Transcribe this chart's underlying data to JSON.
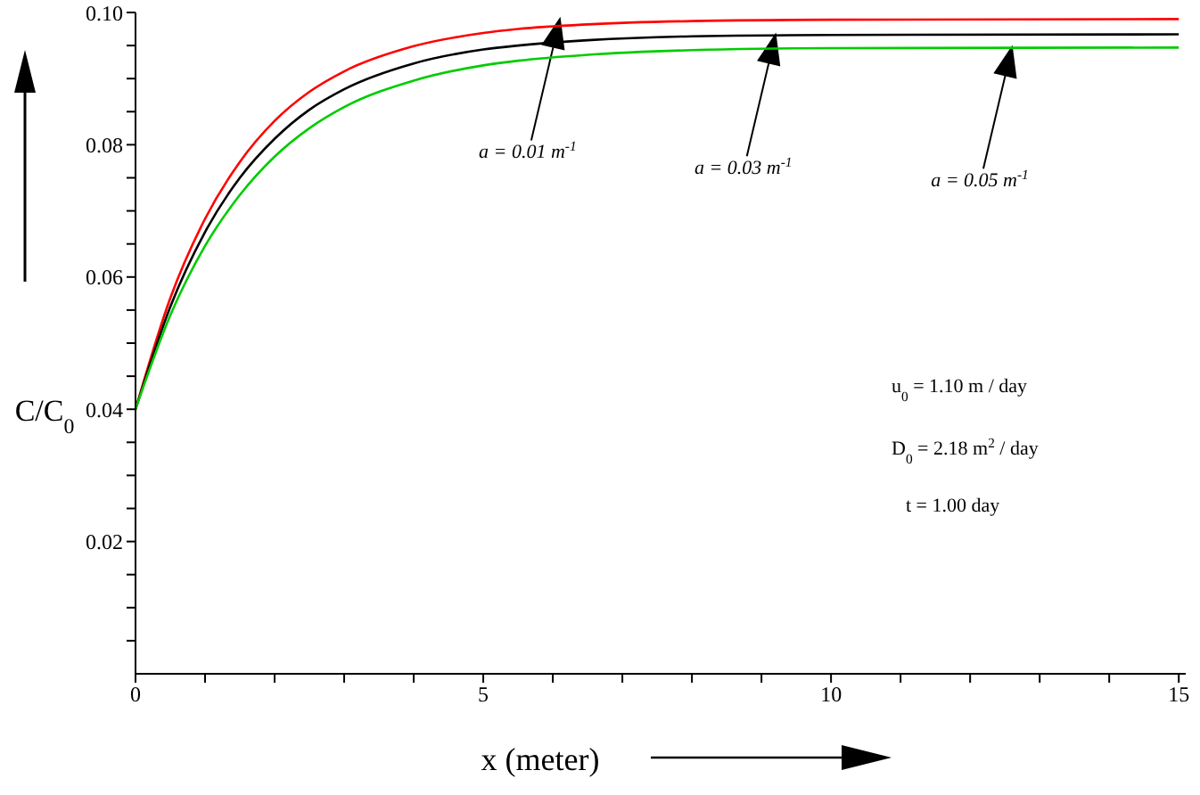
{
  "chart_data": {
    "type": "line",
    "xlabel": "x (meter)",
    "ylabel": "C/C$_{0}$",
    "x": [
      0,
      0.5,
      1,
      1.5,
      2,
      2.5,
      3,
      4,
      5,
      5.5,
      6.5,
      8,
      10,
      15
    ],
    "series": [
      {
        "color": "#ff0000",
        "values": [
          0.04,
          0.0568,
          0.0688,
          0.0774,
          0.0836,
          0.088,
          0.0911,
          0.0949,
          0.0969,
          0.0975,
          0.0982,
          0.0987,
          0.0989,
          0.099
        ]
      },
      {
        "color": "#000000",
        "values": [
          0.04,
          0.0555,
          0.0668,
          0.075,
          0.0809,
          0.0853,
          0.0884,
          0.0923,
          0.0944,
          0.095,
          0.0958,
          0.0964,
          0.0966,
          0.0967
        ]
      },
      {
        "color": "#00cc00",
        "values": [
          0.04,
          0.0542,
          0.0647,
          0.0724,
          0.0782,
          0.0825,
          0.0857,
          0.0897,
          0.092,
          0.0927,
          0.0936,
          0.0943,
          0.0946,
          0.0947
        ]
      }
    ],
    "xlim": [
      0,
      15.1
    ],
    "ylim": [
      0,
      0.1
    ],
    "xticks": [
      0,
      {
        "value": 1,
        "label": null
      },
      {
        "value": 2,
        "label": null
      },
      {
        "value": 3,
        "label": null
      },
      {
        "value": 4,
        "label": null
      },
      5,
      {
        "value": 6,
        "label": null
      },
      {
        "value": 7,
        "label": null
      },
      {
        "value": 8,
        "label": null
      },
      {
        "value": 9,
        "label": null
      },
      10,
      {
        "value": 11,
        "label": null
      },
      {
        "value": 12,
        "label": null
      },
      {
        "value": 13,
        "label": null
      },
      {
        "value": 14,
        "label": null
      },
      15
    ],
    "yticks": [
      {
        "value": 0.005,
        "label": null
      },
      {
        "value": 0.01,
        "label": null
      },
      {
        "value": 0.015,
        "label": null
      },
      0.02,
      {
        "value": 0.025,
        "label": null
      },
      {
        "value": 0.03,
        "label": null
      },
      {
        "value": 0.035,
        "label": null
      },
      0.04,
      {
        "value": 0.045,
        "label": null
      },
      {
        "value": 0.05,
        "label": null
      },
      {
        "value": 0.055,
        "label": null
      },
      0.06,
      {
        "value": 0.065,
        "label": null
      },
      {
        "value": 0.07,
        "label": null
      },
      {
        "value": 0.075,
        "label": null
      },
      0.08,
      {
        "value": 0.085,
        "label": null
      },
      {
        "value": 0.09,
        "label": null
      },
      {
        "value": 0.095,
        "label": null
      },
      {
        "value": 0.1,
        "label": "0.10"
      }
    ],
    "grid": false,
    "legend": false,
    "marker": "none",
    "line_style": "solid",
    "annotations": [
      {
        "text": "a = 0.01 m$^{-1}$",
        "x": 6.1,
        "y": 0.099
      },
      {
        "text": "a = 0.03 m$^{-1}$",
        "x": 9.2,
        "y": 0.0966
      },
      {
        "text": "a = 0.05 m$^{-1}$",
        "x": 12.6,
        "y": 0.0947
      },
      "u$_{0}$ = 1.10 m / day",
      "D$_{0}$ = 2.18 m$^{2}$ / day",
      "t = 1.00 day"
    ]
  }
}
